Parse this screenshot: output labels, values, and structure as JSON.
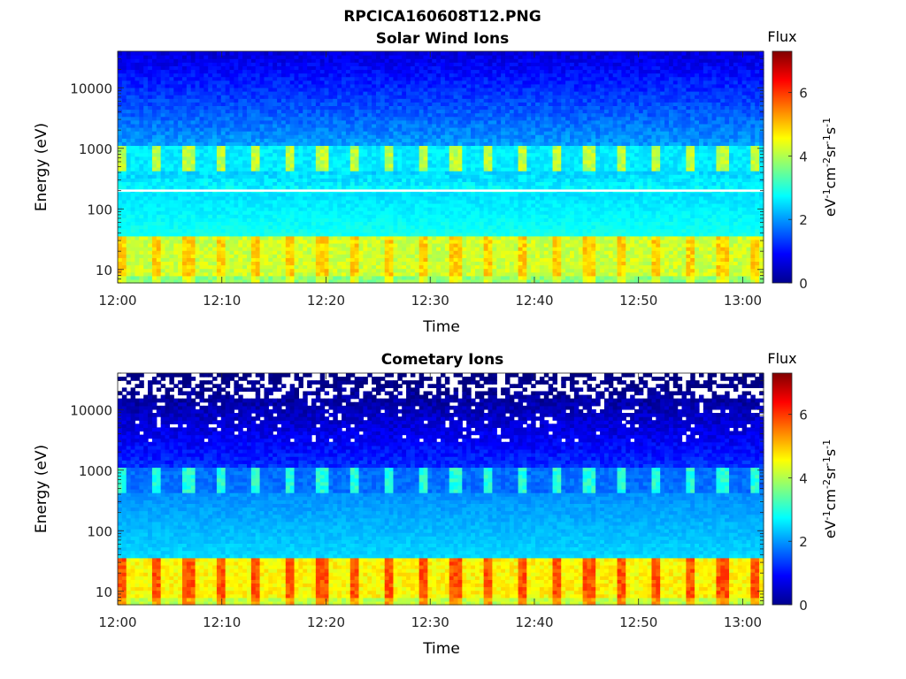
{
  "figure": {
    "title": "RPCICA160608T12.PNG"
  },
  "chart_data": [
    {
      "type": "heatmap",
      "title": "Solar Wind Ions",
      "xlabel": "Time",
      "ylabel": "Energy (eV)",
      "y_scale": "log",
      "xlim": [
        "12:00",
        "13:02"
      ],
      "ylim": [
        6,
        40000
      ],
      "x_ticks": [
        "12:00",
        "12:10",
        "12:20",
        "12:30",
        "12:40",
        "12:50",
        "13:00"
      ],
      "y_ticks": [
        "10",
        "100",
        "1000",
        "10000"
      ],
      "grid": false,
      "colorbar": {
        "title": "Flux",
        "label": "eV-1cm-2sr-1s-1",
        "range": [
          0,
          7.3
        ],
        "ticks": [
          "0",
          "2",
          "4",
          "6"
        ],
        "colormap": "jet"
      },
      "features": {
        "low_energy_band": {
          "energy_range_eV": [
            6,
            35
          ],
          "flux": 4.2,
          "pulse_flux": 4.9
        },
        "solar_wind_peak": {
          "energy_eV": 750,
          "flux_range": [
            2.4,
            4.4
          ]
        },
        "background_flux": {
          "energy_range_eV": [
            40,
            200
          ],
          "flux": 2.9
        },
        "white_line_energy_eV": 200,
        "pulse_period_min": 3.2
      }
    },
    {
      "type": "heatmap",
      "title": "Cometary Ions",
      "xlabel": "Time",
      "ylabel": "Energy (eV)",
      "y_scale": "log",
      "xlim": [
        "12:00",
        "13:02"
      ],
      "ylim": [
        6,
        40000
      ],
      "x_ticks": [
        "12:00",
        "12:10",
        "12:20",
        "12:30",
        "12:40",
        "12:50",
        "13:00"
      ],
      "y_ticks": [
        "10",
        "100",
        "1000",
        "10000"
      ],
      "grid": false,
      "colorbar": {
        "title": "Flux",
        "label": "eV-1cm-2sr-1s-1",
        "range": [
          0,
          7.3
        ],
        "ticks": [
          "0",
          "2",
          "4",
          "6"
        ],
        "colormap": "jet"
      },
      "features": {
        "low_energy_band": {
          "energy_range_eV": [
            6,
            35
          ],
          "flux": 4.6,
          "pulse_flux": 5.8
        },
        "ion_peak": {
          "energy_eV": 700,
          "flux_range": [
            1.5,
            3.3
          ]
        },
        "background_flux": {
          "energy_range_eV": [
            40,
            400
          ],
          "flux": 2.5
        },
        "sparse_high_energy_eV": 10000,
        "pulse_period_min": 3.2
      }
    }
  ]
}
